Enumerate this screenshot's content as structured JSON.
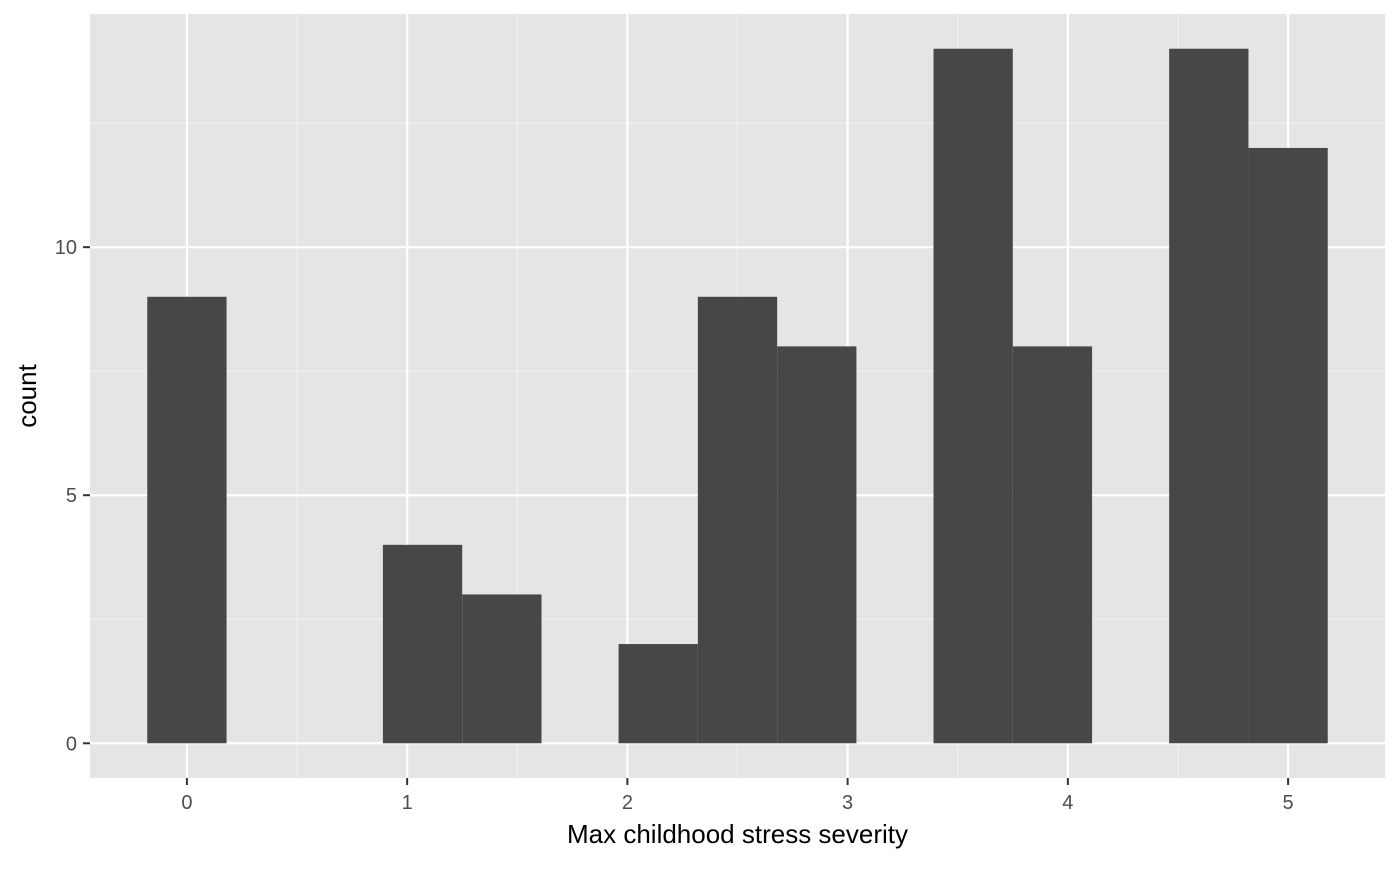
{
  "chart_data": {
    "type": "bar",
    "subtype": "histogram",
    "title": "",
    "xlabel": "Max childhood stress severity",
    "ylabel": "count",
    "xlim": [
      -0.44,
      5.44
    ],
    "ylim": [
      -0.7,
      14.7
    ],
    "x_ticks": [
      0,
      1,
      2,
      3,
      4,
      5
    ],
    "y_ticks": [
      0,
      5,
      10
    ],
    "x_minor_gridlines": [
      0.5,
      1.5,
      2.5,
      3.5,
      4.5
    ],
    "y_minor_gridlines": [
      2.5,
      7.5,
      12.5
    ],
    "grid": true,
    "legend": "none",
    "bins": [
      {
        "x0": -0.18,
        "x1": 0.18,
        "count": 9
      },
      {
        "x0": 0.18,
        "x1": 0.53,
        "count": 0
      },
      {
        "x0": 0.53,
        "x1": 0.89,
        "count": 0
      },
      {
        "x0": 0.89,
        "x1": 1.25,
        "count": 4
      },
      {
        "x0": 1.25,
        "x1": 1.61,
        "count": 3
      },
      {
        "x0": 1.61,
        "x1": 1.96,
        "count": 0
      },
      {
        "x0": 1.96,
        "x1": 2.32,
        "count": 2
      },
      {
        "x0": 2.32,
        "x1": 2.68,
        "count": 9
      },
      {
        "x0": 2.68,
        "x1": 3.04,
        "count": 8
      },
      {
        "x0": 3.04,
        "x1": 3.39,
        "count": 0
      },
      {
        "x0": 3.39,
        "x1": 3.75,
        "count": 14
      },
      {
        "x0": 3.75,
        "x1": 4.11,
        "count": 8
      },
      {
        "x0": 4.11,
        "x1": 4.46,
        "count": 0
      },
      {
        "x0": 4.46,
        "x1": 4.82,
        "count": 14
      },
      {
        "x0": 4.82,
        "x1": 5.18,
        "count": 12
      }
    ],
    "colors": {
      "panel_background": "#e5e5e5",
      "grid_major": "#ffffff",
      "grid_minor": "#f2f2f2",
      "bar_fill": "#474747",
      "tick_label": "#4d4d4d",
      "tick_mark": "#333333",
      "axis_title": "#000000"
    }
  }
}
